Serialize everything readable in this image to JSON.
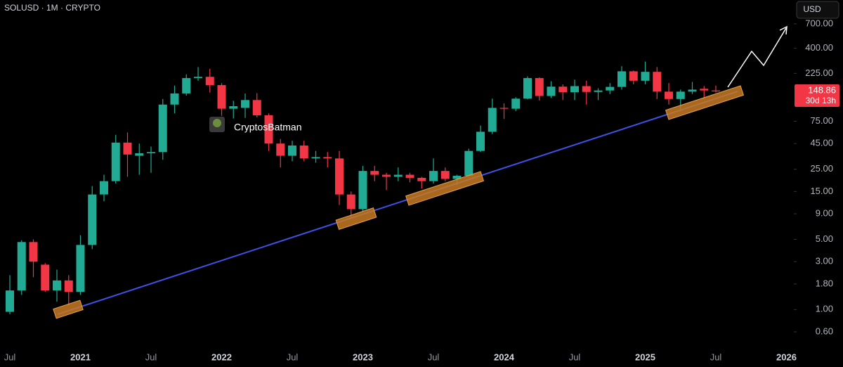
{
  "chart_data": {
    "type": "candlestick",
    "title": "SOLUSD · 1M · CRYPTO",
    "currency": "USD",
    "annotation": "CryptosBatman",
    "last_price": 148.86,
    "countdown": "30d 13h",
    "log_scale": true,
    "grid": false,
    "up_color": "#22ab94",
    "down_color": "#f23645",
    "categories": [
      "Jul",
      null,
      null,
      null,
      null,
      null,
      "2021",
      null,
      null,
      null,
      null,
      null,
      "Jul",
      null,
      null,
      null,
      null,
      null,
      "2022",
      null,
      null,
      null,
      null,
      null,
      "Jul",
      null,
      null,
      null,
      null,
      null,
      "2023",
      null,
      null,
      null,
      null,
      null,
      "Jul",
      null,
      null,
      null,
      null,
      null,
      "2024",
      null,
      null,
      null,
      null,
      null,
      "Jul",
      null,
      null,
      null,
      null,
      null,
      "2025",
      null,
      null,
      null,
      null,
      null,
      "Jul",
      null,
      null,
      null,
      null,
      null,
      "2026"
    ],
    "open": [
      0.95,
      1.55,
      4.7,
      2.8,
      1.55,
      1.95,
      1.5,
      4.4,
      14,
      19,
      46,
      34,
      36,
      37,
      110,
      142,
      202,
      208,
      172,
      100,
      102,
      122,
      86,
      45,
      34,
      43,
      32,
      33,
      32,
      14,
      10,
      24,
      22,
      21,
      22,
      20.5,
      19,
      24,
      20,
      21.5,
      38,
      59,
      102,
      100,
      126,
      202,
      134,
      166,
      146,
      168,
      147,
      152,
      165,
      236,
      190,
      233,
      148,
      125,
      148,
      158,
      152,
      null,
      null,
      null,
      null,
      null,
      null
    ],
    "high": [
      2.2,
      4.9,
      5.0,
      2.9,
      2.5,
      2.2,
      5.5,
      17,
      22,
      55,
      58,
      45,
      42,
      125,
      170,
      220,
      260,
      250,
      180,
      120,
      142,
      143,
      90,
      50,
      48,
      48,
      38,
      37,
      38,
      15,
      27,
      27,
      23,
      26,
      23,
      21,
      32,
      26,
      22,
      40,
      68,
      126,
      113,
      130,
      210,
      205,
      188,
      175,
      195,
      190,
      160,
      180,
      265,
      240,
      295,
      260,
      180,
      155,
      185,
      168,
      170,
      null,
      null,
      null,
      null,
      null,
      null
    ],
    "low": [
      0.9,
      1.4,
      2.1,
      1.5,
      1.2,
      1.1,
      1.4,
      4.0,
      12,
      18,
      21,
      22,
      23,
      31,
      90,
      135,
      190,
      145,
      85,
      80,
      81,
      82,
      38,
      26,
      30,
      30,
      29,
      26,
      11,
      8,
      9.5,
      19,
      15.5,
      19,
      18.5,
      16,
      18,
      19,
      17.5,
      21,
      37,
      56,
      79,
      95,
      124,
      121,
      128,
      122,
      122,
      110,
      122,
      140,
      155,
      175,
      175,
      125,
      110,
      95,
      140,
      126,
      145,
      null,
      null,
      null,
      null,
      null,
      null
    ],
    "close": [
      1.55,
      4.7,
      3.0,
      1.55,
      1.95,
      1.5,
      4.4,
      14,
      19,
      46,
      35,
      36,
      37,
      110,
      142,
      202,
      208,
      172,
      100,
      106,
      122,
      86,
      45,
      34,
      43,
      32,
      33,
      32,
      14,
      10,
      24,
      22,
      21,
      22,
      20.5,
      19,
      24,
      20,
      21.5,
      38,
      59,
      102,
      100,
      126,
      202,
      134,
      166,
      146,
      168,
      147,
      152,
      165,
      236,
      190,
      233,
      148,
      125,
      148,
      155,
      152,
      148.86,
      null,
      null,
      null,
      null,
      null,
      null
    ],
    "ylim": [
      0.382,
      1210
    ],
    "yticks": [
      {
        "value": 0.6,
        "label": "0.60"
      },
      {
        "value": 1,
        "label": "1.00"
      },
      {
        "value": 1.8,
        "label": "1.80"
      },
      {
        "value": 3,
        "label": "3.00"
      },
      {
        "value": 5,
        "label": "5.00"
      },
      {
        "value": 9,
        "label": "9.00"
      },
      {
        "value": 15,
        "label": "15.00"
      },
      {
        "value": 25,
        "label": "25.00"
      },
      {
        "value": 45,
        "label": "45.00"
      },
      {
        "value": 75,
        "label": "75.00"
      },
      {
        "value": 225,
        "label": "225.00"
      },
      {
        "value": 400,
        "label": "400.00"
      },
      {
        "value": 700,
        "label": "700.00"
      }
    ]
  }
}
